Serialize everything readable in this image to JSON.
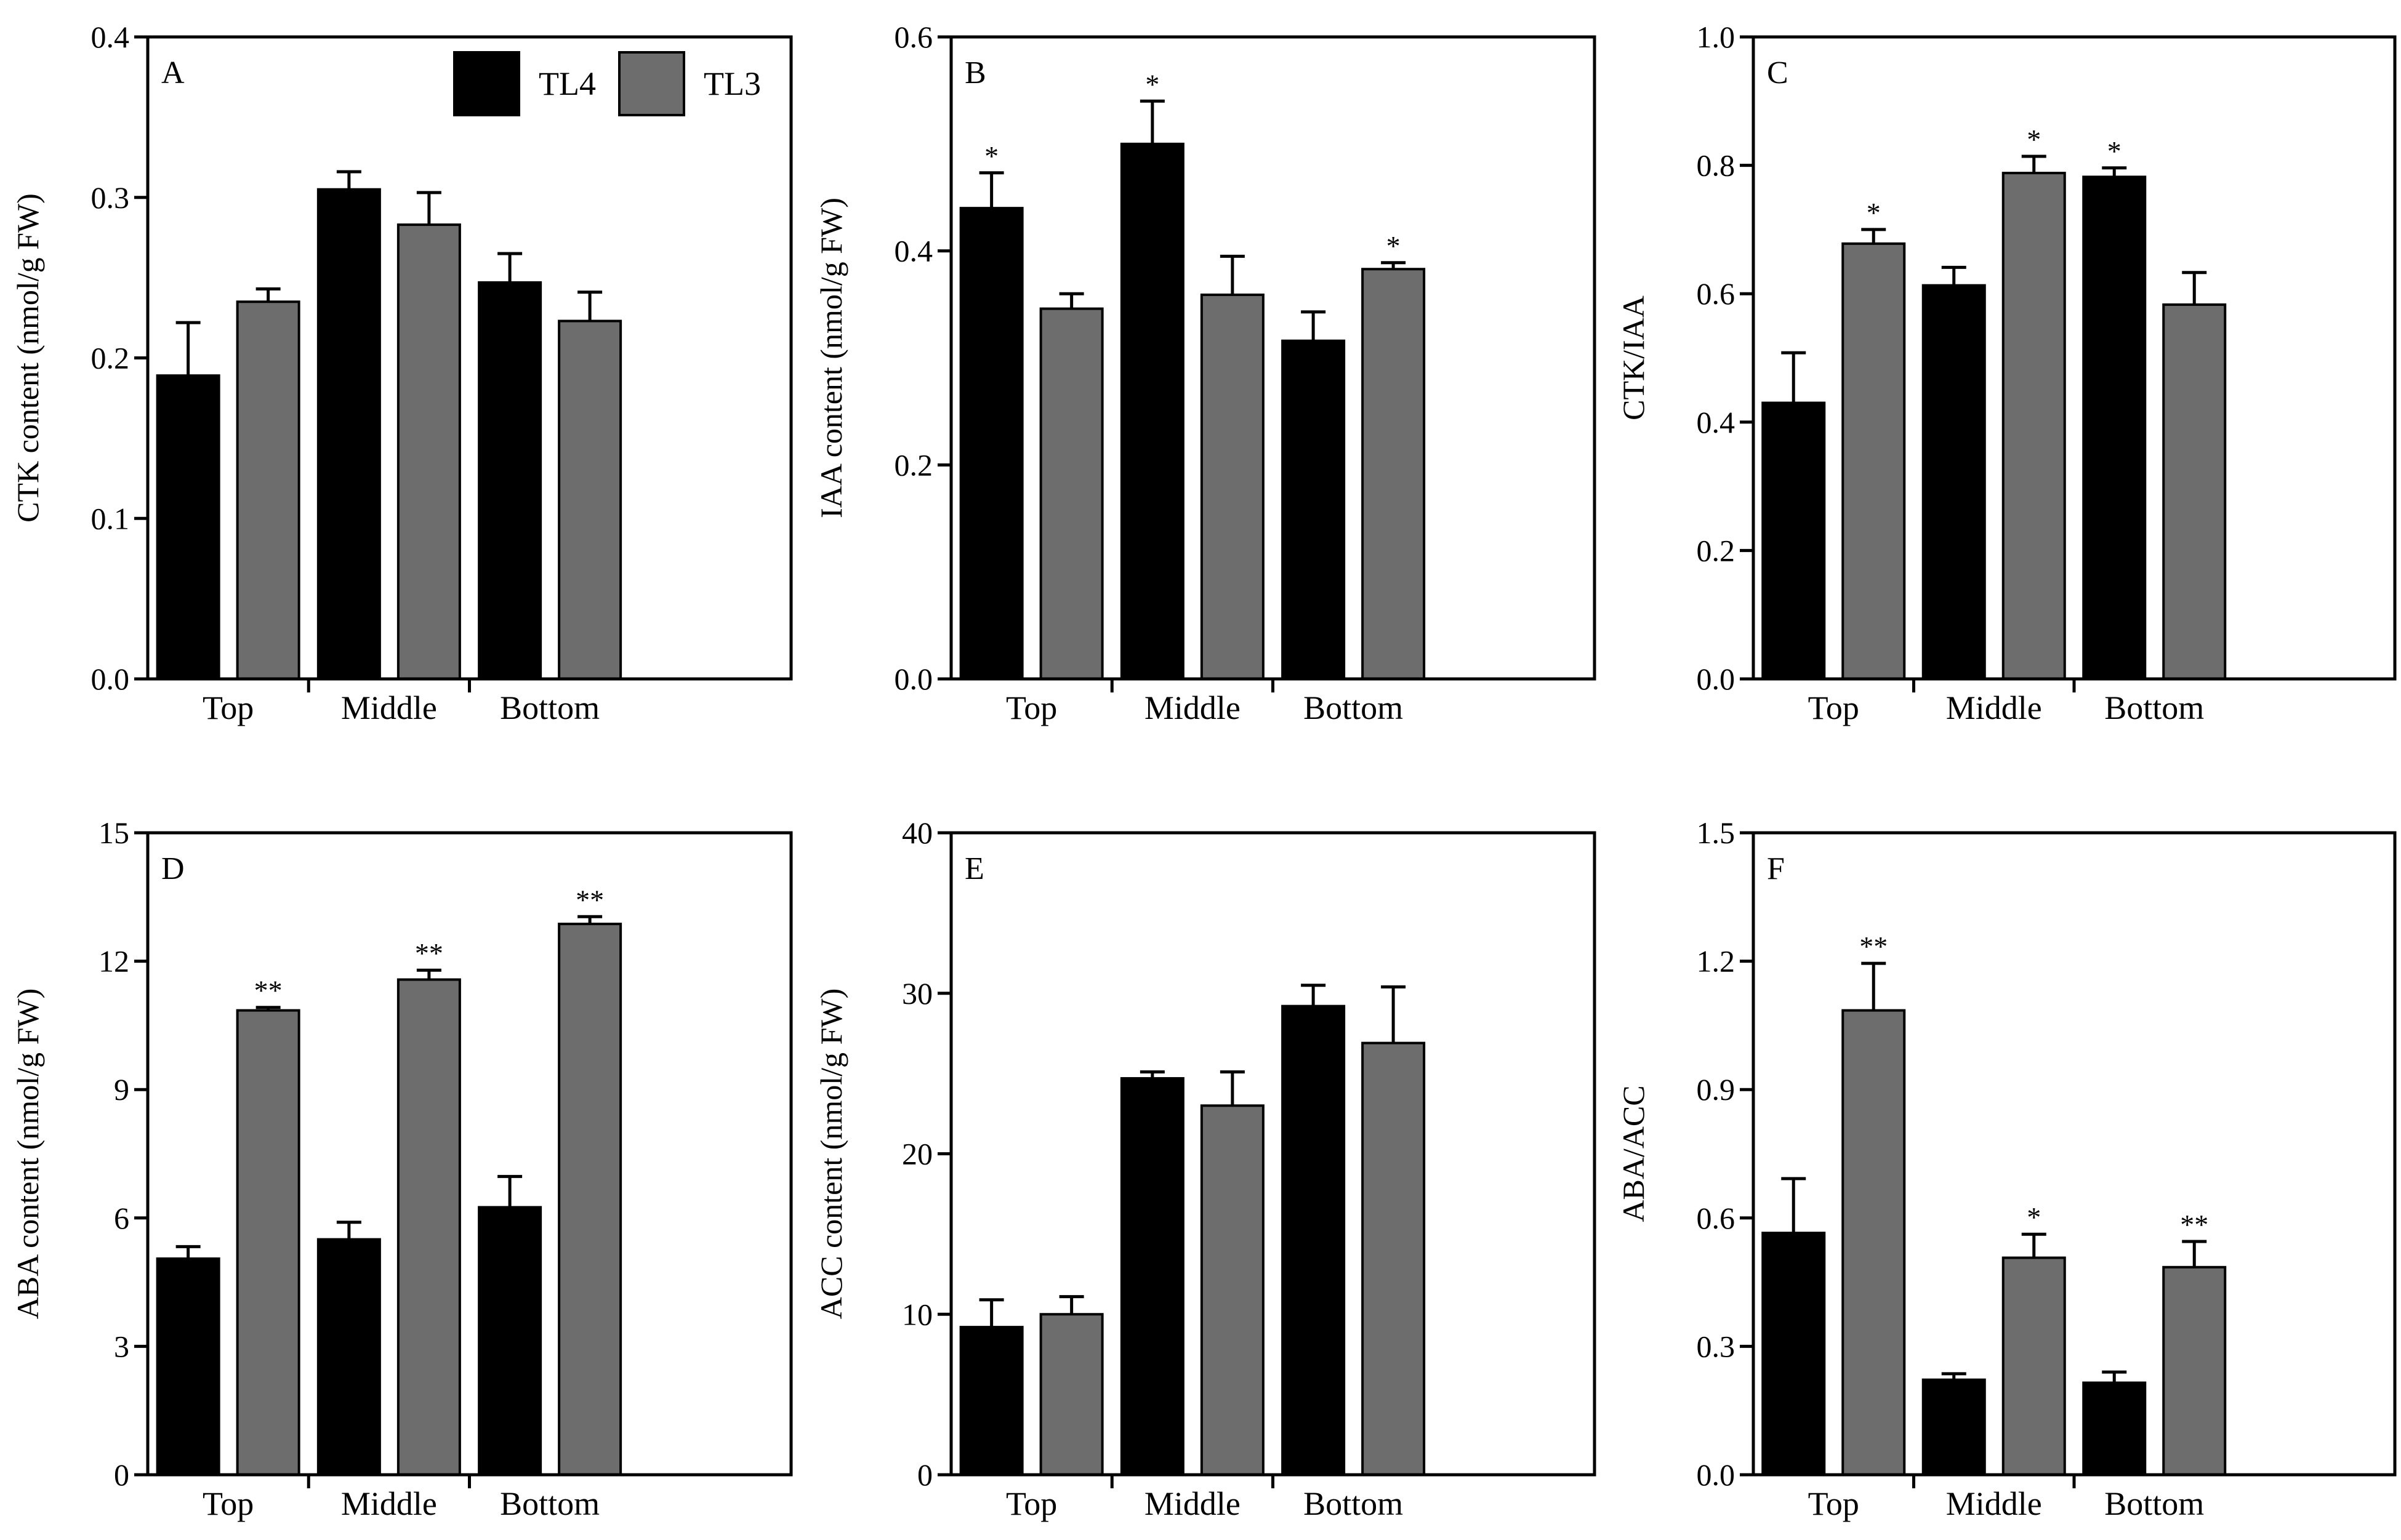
{
  "colors": {
    "TL4": "#000000",
    "TL3": "#6d6d6d",
    "axis": "#000000",
    "background": "#ffffff"
  },
  "legend": {
    "entries": [
      {
        "label": "TL4"
      },
      {
        "label": "TL3"
      }
    ],
    "placement": "top-right of panel A"
  },
  "chart_data": [
    {
      "type": "bar",
      "panel": "A",
      "categories": [
        "Top",
        "Middle",
        "Bottom"
      ],
      "ylabel": "CTK content (nmol/g FW)",
      "xlabel": "",
      "ylim": [
        0,
        0.4
      ],
      "yticks": [
        0.0,
        0.1,
        0.2,
        0.3,
        0.4
      ],
      "yticklabels": [
        "0.0",
        "0.1",
        "0.2",
        "0.3",
        "0.4"
      ],
      "grid": false,
      "series": [
        {
          "name": "TL4",
          "values": [
            0.189,
            0.305,
            0.247
          ],
          "errors": [
            0.033,
            0.011,
            0.018
          ],
          "stars": [
            "",
            "",
            ""
          ]
        },
        {
          "name": "TL3",
          "values": [
            0.235,
            0.283,
            0.223
          ],
          "errors": [
            0.008,
            0.02,
            0.018
          ],
          "stars": [
            "",
            "",
            ""
          ]
        }
      ]
    },
    {
      "type": "bar",
      "panel": "B",
      "categories": [
        "Top",
        "Middle",
        "Bottom"
      ],
      "ylabel": "IAA content (nmol/g FW)",
      "xlabel": "",
      "ylim": [
        0,
        0.6
      ],
      "yticks": [
        0.0,
        0.2,
        0.4,
        0.6
      ],
      "yticklabels": [
        "0.0",
        "0.2",
        "0.4",
        "0.6"
      ],
      "grid": false,
      "series": [
        {
          "name": "TL4",
          "values": [
            0.44,
            0.5,
            0.316
          ],
          "errors": [
            0.033,
            0.04,
            0.027
          ],
          "stars": [
            "*",
            "*",
            ""
          ]
        },
        {
          "name": "TL3",
          "values": [
            0.346,
            0.359,
            0.383
          ],
          "errors": [
            0.014,
            0.036,
            0.006
          ],
          "stars": [
            "",
            "",
            "*"
          ]
        }
      ]
    },
    {
      "type": "bar",
      "panel": "C",
      "categories": [
        "Top",
        "Middle",
        "Bottom"
      ],
      "ylabel": "CTK/IAA",
      "xlabel": "",
      "ylim": [
        0,
        1.0
      ],
      "yticks": [
        0.0,
        0.2,
        0.4,
        0.6,
        0.8,
        1.0
      ],
      "yticklabels": [
        "0.0",
        "0.2",
        "0.4",
        "0.6",
        "0.8",
        "1.0"
      ],
      "grid": false,
      "series": [
        {
          "name": "TL4",
          "values": [
            0.43,
            0.613,
            0.782
          ],
          "errors": [
            0.078,
            0.028,
            0.014
          ],
          "stars": [
            "",
            "",
            "*"
          ]
        },
        {
          "name": "TL3",
          "values": [
            0.678,
            0.788,
            0.583
          ],
          "errors": [
            0.022,
            0.026,
            0.05
          ],
          "stars": [
            "*",
            "*",
            ""
          ]
        }
      ]
    },
    {
      "type": "bar",
      "panel": "D",
      "categories": [
        "Top",
        "Middle",
        "Bottom"
      ],
      "ylabel": "ABA content (nmol/g FW)",
      "xlabel": "",
      "ylim": [
        0,
        15
      ],
      "yticks": [
        0,
        3,
        6,
        9,
        12,
        15
      ],
      "yticklabels": [
        "0",
        "3",
        "6",
        "9",
        "12",
        "15"
      ],
      "grid": false,
      "series": [
        {
          "name": "TL4",
          "values": [
            5.05,
            5.5,
            6.25
          ],
          "errors": [
            0.28,
            0.4,
            0.72
          ],
          "stars": [
            "",
            "",
            ""
          ]
        },
        {
          "name": "TL3",
          "values": [
            10.85,
            11.57,
            12.87
          ],
          "errors": [
            0.07,
            0.22,
            0.17
          ],
          "stars": [
            "**",
            "**",
            "**"
          ]
        }
      ]
    },
    {
      "type": "bar",
      "panel": "E",
      "categories": [
        "Top",
        "Middle",
        "Bottom"
      ],
      "ylabel": "ACC content (nmol/g FW)",
      "xlabel": "",
      "ylim": [
        0,
        40
      ],
      "yticks": [
        0,
        10,
        20,
        30,
        40
      ],
      "yticklabels": [
        "0",
        "10",
        "20",
        "30",
        "40"
      ],
      "grid": false,
      "series": [
        {
          "name": "TL4",
          "values": [
            9.2,
            24.7,
            29.2
          ],
          "errors": [
            1.7,
            0.4,
            1.3
          ],
          "stars": [
            "",
            "",
            ""
          ]
        },
        {
          "name": "TL3",
          "values": [
            10.0,
            23.0,
            26.9
          ],
          "errors": [
            1.1,
            2.1,
            3.5
          ],
          "stars": [
            "",
            "",
            ""
          ]
        }
      ]
    },
    {
      "type": "bar",
      "panel": "F",
      "categories": [
        "Top",
        "Middle",
        "Bottom"
      ],
      "ylabel": "ABA/ACC",
      "xlabel": "",
      "ylim": [
        0,
        1.5
      ],
      "yticks": [
        0.0,
        0.3,
        0.6,
        0.9,
        1.2,
        1.5
      ],
      "yticklabels": [
        "0.0",
        "0.3",
        "0.6",
        "0.9",
        "1.2",
        "1.5"
      ],
      "grid": false,
      "series": [
        {
          "name": "TL4",
          "values": [
            0.565,
            0.222,
            0.215
          ],
          "errors": [
            0.127,
            0.014,
            0.025
          ],
          "stars": [
            "",
            "",
            ""
          ]
        },
        {
          "name": "TL3",
          "values": [
            1.085,
            0.507,
            0.485
          ],
          "errors": [
            0.11,
            0.055,
            0.06
          ],
          "stars": [
            "**",
            "*",
            "**"
          ]
        }
      ]
    }
  ]
}
